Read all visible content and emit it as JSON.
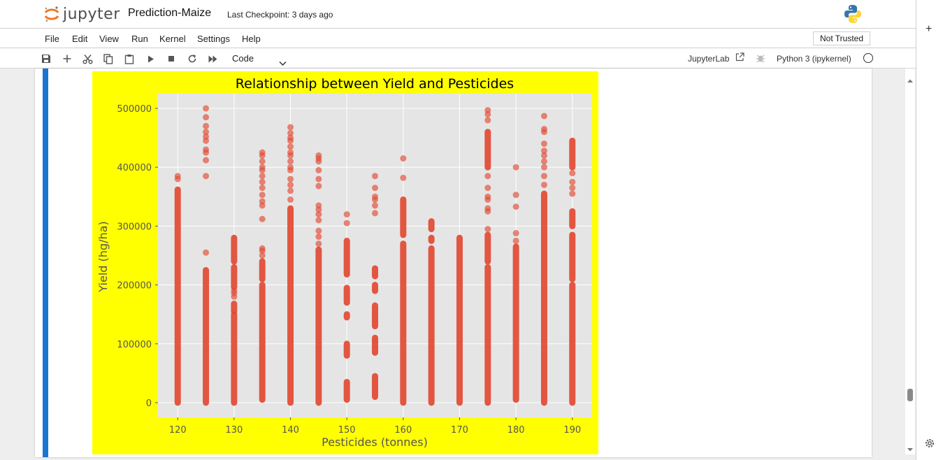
{
  "header": {
    "logo_text": "jupyter",
    "notebook_title": "Prediction-Maize",
    "checkpoint": "Last Checkpoint: 3 days ago"
  },
  "menu": {
    "items": [
      "File",
      "Edit",
      "View",
      "Run",
      "Kernel",
      "Settings",
      "Help"
    ],
    "trust_status": "Not Trusted"
  },
  "toolbar": {
    "buttons": [
      "save-icon",
      "add-cell-icon",
      "cut-icon",
      "copy-icon",
      "paste-icon",
      "run-icon",
      "stop-icon",
      "restart-icon",
      "fast-forward-icon"
    ],
    "cell_type": "Code",
    "jupyterlab_label": "JupyterLab",
    "kernel_name": "Python 3 (ipykernel)"
  },
  "colors": {
    "accent": "#1976d2",
    "plot_bg": "#ffff00",
    "axes_bg": "#e5e5e5",
    "marker": "#e24a33"
  },
  "chart_data": {
    "type": "scatter",
    "title": "Relationship between Yield and Pesticides",
    "xlabel": "Pesticides (tonnes)",
    "ylabel": "Yield (hg/ha)",
    "xlim": [
      116.5,
      193.5
    ],
    "ylim": [
      -25000,
      525000
    ],
    "xticks": [
      120,
      130,
      140,
      150,
      160,
      170,
      180,
      190
    ],
    "yticks": [
      0,
      100000,
      200000,
      300000,
      400000,
      500000
    ],
    "ytick_labels": [
      "0",
      "100000",
      "200000",
      "300000",
      "400000",
      "500000"
    ],
    "grid": true,
    "series": [
      {
        "points": [
          {
            "x": 120,
            "dense": [
              [
                0,
                362000
              ]
            ],
            "y": [
              385000,
              380000
            ]
          },
          {
            "x": 125,
            "dense": [
              [
                0,
                225000
              ]
            ],
            "y": [
              255000,
              385000,
              412000,
              425000,
              430000,
              445000,
              452000,
              460000,
              470000,
              485000,
              500000
            ]
          },
          {
            "x": 130,
            "dense": [
              [
                0,
                150000
              ],
              [
                155000,
                168000
              ],
              [
                196000,
                230000
              ],
              [
                240000,
                280000
              ]
            ],
            "y": [
              180000,
              186000,
              190000
            ]
          },
          {
            "x": 135,
            "dense": [
              [
                5000,
                200000
              ],
              [
                210000,
                240000
              ]
            ],
            "y": [
              250000,
              258000,
              262000,
              312000,
              335000,
              342000,
              353000,
              365000,
              375000,
              385000,
              395000,
              400000,
              410000,
              420000,
              425000
            ]
          },
          {
            "x": 140,
            "dense": [
              [
                0,
                330000
              ]
            ],
            "y": [
              345000,
              360000,
              370000,
              380000,
              395000,
              400000,
              410000,
              420000,
              425000,
              435000,
              445000,
              450000,
              458000,
              468000
            ]
          },
          {
            "x": 145,
            "dense": [
              [
                0,
                260000
              ]
            ],
            "y": [
              270000,
              282000,
              292000,
              310000,
              320000,
              328000,
              335000,
              368000,
              380000,
              395000,
              410000,
              415000,
              420000
            ]
          },
          {
            "x": 150,
            "dense": [
              [
                5000,
                35000
              ],
              [
                80000,
                100000
              ],
              [
                145000,
                150000
              ],
              [
                170000,
                195000
              ],
              [
                218000,
                275000
              ]
            ],
            "y": [
              305000,
              320000
            ]
          },
          {
            "x": 155,
            "dense": [
              [
                10000,
                45000
              ],
              [
                85000,
                110000
              ],
              [
                130000,
                165000
              ],
              [
                190000,
                200000
              ],
              [
                215000,
                228000
              ]
            ],
            "y": [
              322000,
              335000,
              345000,
              350000,
              365000,
              385000
            ]
          },
          {
            "x": 160,
            "dense": [
              [
                0,
                270000
              ],
              [
                285000,
                345000
              ]
            ],
            "y": [
              382000,
              415000
            ]
          },
          {
            "x": 165,
            "dense": [
              [
                0,
                262000
              ],
              [
                275000,
                280000
              ],
              [
                295000,
                308000
              ]
            ],
            "y": []
          },
          {
            "x": 170,
            "dense": [
              [
                0,
                280000
              ]
            ],
            "y": []
          },
          {
            "x": 175,
            "dense": [
              [
                0,
                230000
              ],
              [
                240000,
                285000
              ],
              [
                400000,
                460000
              ]
            ],
            "y": [
              295000,
              325000,
              330000,
              345000,
              350000,
              365000,
              385000,
              480000,
              490000,
              497000
            ]
          },
          {
            "x": 180,
            "dense": [
              [
                5000,
                265000
              ]
            ],
            "y": [
              275000,
              288000,
              333000,
              353000,
              400000
            ]
          },
          {
            "x": 185,
            "dense": [
              [
                0,
                355000
              ]
            ],
            "y": [
              370000,
              385000,
              400000,
              410000,
              420000,
              428000,
              440000,
              460000,
              465000,
              487000
            ]
          },
          {
            "x": 190,
            "dense": [
              [
                0,
                200000
              ],
              [
                210000,
                285000
              ],
              [
                300000,
                325000
              ],
              [
                400000,
                445000
              ]
            ],
            "y": [
              355000,
              365000,
              375000,
              390000
            ]
          }
        ]
      }
    ]
  }
}
